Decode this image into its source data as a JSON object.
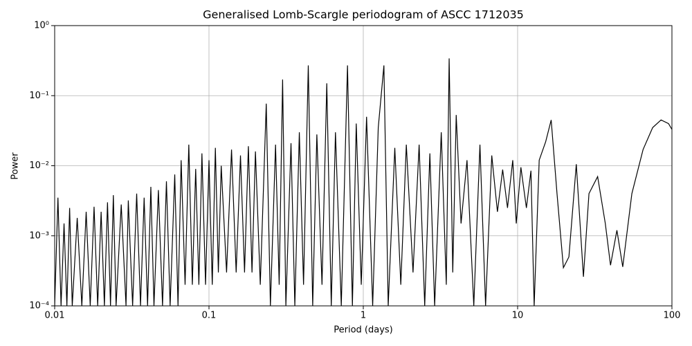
{
  "chart_data": {
    "type": "line",
    "title": "Generalised Lomb-Scargle periodogram of ASCC 1712035",
    "x_label": "Period (days)",
    "y_label": "Power",
    "xscale": "log",
    "yscale": "log",
    "grid": true,
    "xlim": [
      0.01,
      100
    ],
    "ylim": [
      0.0001,
      1
    ],
    "xticks": [
      0.01,
      0.1,
      1,
      10,
      100
    ],
    "yticks": [
      {
        "value": 0.0001,
        "label": "10⁻⁴"
      },
      {
        "value": 0.001,
        "label": "10⁻³"
      },
      {
        "value": 0.01,
        "label": "10⁻²"
      },
      {
        "value": 0.1,
        "label": "10⁻¹"
      },
      {
        "value": 1,
        "label": "10⁰"
      }
    ],
    "series": [
      {
        "color": "#000000",
        "x": [
          0.01,
          0.0105,
          0.011,
          0.0115,
          0.012,
          0.0125,
          0.013,
          0.014,
          0.015,
          0.016,
          0.017,
          0.018,
          0.019,
          0.02,
          0.021,
          0.022,
          0.023,
          0.024,
          0.025,
          0.027,
          0.029,
          0.03,
          0.032,
          0.034,
          0.036,
          0.038,
          0.04,
          0.042,
          0.044,
          0.047,
          0.05,
          0.053,
          0.056,
          0.06,
          0.063,
          0.066,
          0.07,
          0.074,
          0.078,
          0.082,
          0.086,
          0.09,
          0.095,
          0.1,
          0.105,
          0.11,
          0.115,
          0.12,
          0.13,
          0.14,
          0.15,
          0.16,
          0.17,
          0.18,
          0.19,
          0.2,
          0.215,
          0.235,
          0.25,
          0.27,
          0.285,
          0.3,
          0.315,
          0.34,
          0.36,
          0.385,
          0.41,
          0.44,
          0.47,
          0.5,
          0.54,
          0.58,
          0.62,
          0.66,
          0.72,
          0.79,
          0.85,
          0.9,
          0.97,
          1.05,
          1.15,
          1.25,
          1.36,
          1.45,
          1.6,
          1.75,
          1.9,
          2.1,
          2.3,
          2.5,
          2.7,
          2.9,
          3.2,
          3.45,
          3.6,
          3.8,
          4.0,
          4.3,
          4.7,
          5.2,
          5.7,
          6.2,
          6.8,
          7.4,
          8.0,
          8.6,
          9.3,
          9.8,
          10.5,
          11.4,
          12.2,
          12.8,
          13.8,
          15.2,
          16.5,
          18,
          19.8,
          21.5,
          24,
          26.7,
          29,
          33,
          37,
          40,
          44,
          48,
          55,
          65,
          75,
          85,
          95,
          100
        ],
        "values": [
          0.0001,
          0.0035,
          0.0001,
          0.0015,
          0.0001,
          0.0025,
          0.0001,
          0.0018,
          0.0001,
          0.0022,
          0.0001,
          0.0026,
          0.0001,
          0.0022,
          0.0001,
          0.003,
          0.0001,
          0.0038,
          0.0001,
          0.0028,
          0.0001,
          0.0032,
          0.0001,
          0.004,
          0.0001,
          0.0035,
          0.0001,
          0.005,
          0.0001,
          0.0045,
          0.0001,
          0.006,
          0.0001,
          0.0075,
          0.0001,
          0.012,
          0.0002,
          0.02,
          0.0002,
          0.009,
          0.0002,
          0.015,
          0.0002,
          0.012,
          0.0002,
          0.018,
          0.0003,
          0.01,
          0.0003,
          0.017,
          0.0003,
          0.014,
          0.0003,
          0.019,
          0.0003,
          0.016,
          0.0002,
          0.077,
          0.0001,
          0.02,
          0.0002,
          0.17,
          0.0001,
          0.021,
          0.0001,
          0.03,
          0.0002,
          0.27,
          0.0001,
          0.028,
          0.0002,
          0.15,
          0.0001,
          0.03,
          0.0001,
          0.27,
          0.0001,
          0.04,
          0.0002,
          0.05,
          0.0001,
          0.035,
          0.27,
          0.0001,
          0.018,
          0.0002,
          0.02,
          0.0003,
          0.02,
          0.0001,
          0.015,
          0.0001,
          0.03,
          0.0002,
          0.34,
          0.0003,
          0.053,
          0.0015,
          0.012,
          0.0001,
          0.02,
          0.0001,
          0.014,
          0.0022,
          0.0088,
          0.0025,
          0.012,
          0.0015,
          0.0095,
          0.0025,
          0.0085,
          0.0001,
          0.012,
          0.022,
          0.045,
          0.004,
          0.00035,
          0.0005,
          0.0105,
          0.00026,
          0.004,
          0.007,
          0.0015,
          0.00038,
          0.0012,
          0.00036,
          0.004,
          0.017,
          0.035,
          0.045,
          0.04,
          0.033
        ]
      }
    ]
  }
}
